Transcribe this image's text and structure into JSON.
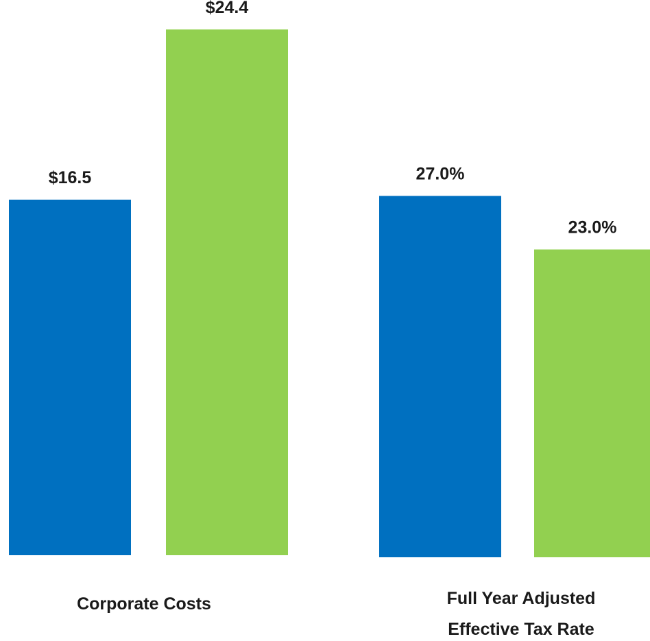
{
  "chart_data": [
    {
      "type": "bar",
      "categories": [
        "Corporate Costs"
      ],
      "series": [
        {
          "color": "#0070c0",
          "values": [
            16.5
          ],
          "value_labels": [
            "$16.5"
          ]
        },
        {
          "color": "#92d050",
          "values": [
            24.4
          ],
          "value_labels": [
            "$24.4"
          ]
        }
      ]
    },
    {
      "type": "bar",
      "categories": [
        "Full Year Adjusted Effective Tax Rate"
      ],
      "series": [
        {
          "color": "#0070c0",
          "values": [
            27.0
          ],
          "value_labels": [
            "27.0%"
          ]
        },
        {
          "color": "#92d050",
          "values": [
            23.0
          ],
          "value_labels": [
            "23.0%"
          ]
        }
      ]
    }
  ]
}
